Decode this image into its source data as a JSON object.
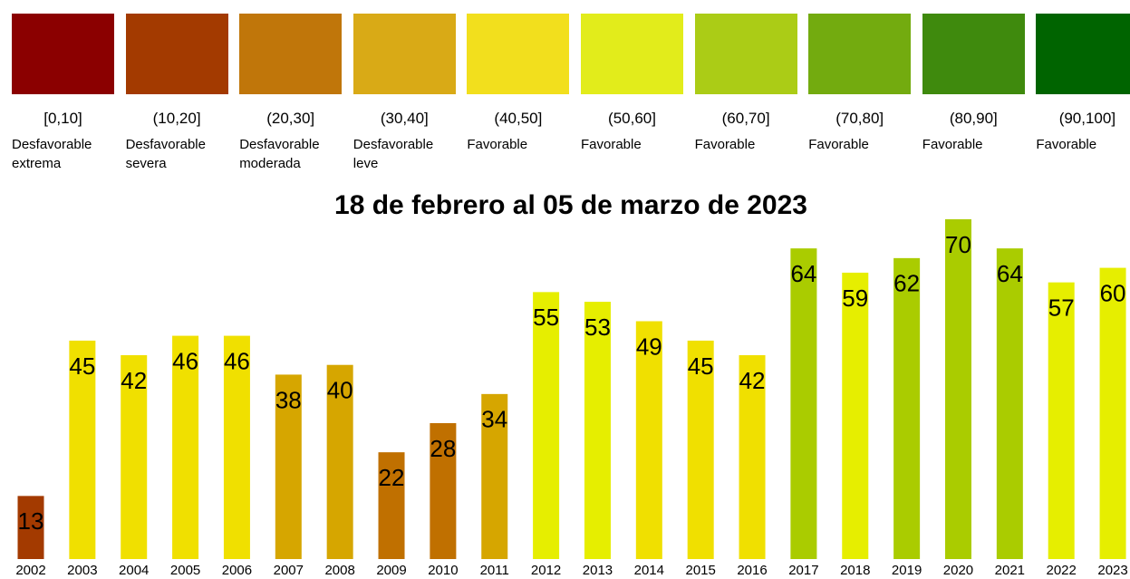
{
  "chart_data": {
    "type": "bar",
    "title": "18 de febrero al 05 de marzo de 2023",
    "legend": [
      {
        "range": "[0,10]",
        "label": "Desfavorable extrema",
        "color": "#8b0000"
      },
      {
        "range": "(10,20]",
        "label": "Desfavorable severa",
        "color": "#a33a00"
      },
      {
        "range": "(20,30]",
        "label": "Desfavorable moderada",
        "color": "#c0760a"
      },
      {
        "range": "(30,40]",
        "label": "Desfavorable leve",
        "color": "#d9aa16"
      },
      {
        "range": "(40,50]",
        "label": "Favorable",
        "color": "#f2df1d"
      },
      {
        "range": "(50,60]",
        "label": "Favorable",
        "color": "#e2ec1b"
      },
      {
        "range": "(60,70]",
        "label": "Favorable",
        "color": "#abcc16"
      },
      {
        "range": "(70,80]",
        "label": "Favorable",
        "color": "#73ab0f"
      },
      {
        "range": "(80,90]",
        "label": "Favorable",
        "color": "#3f8a0d"
      },
      {
        "range": "(90,100]",
        "label": "Favorable",
        "color": "#006400"
      }
    ],
    "categories": [
      "2002",
      "2003",
      "2004",
      "2005",
      "2006",
      "2007",
      "2008",
      "2009",
      "2010",
      "2011",
      "2012",
      "2013",
      "2014",
      "2015",
      "2016",
      "2017",
      "2018",
      "2019",
      "2020",
      "2021",
      "2022",
      "2023"
    ],
    "values": [
      13,
      45,
      42,
      46,
      46,
      38,
      40,
      22,
      28,
      34,
      55,
      53,
      49,
      45,
      42,
      64,
      59,
      62,
      70,
      64,
      57,
      60
    ],
    "colors": [
      "#a33a00",
      "#f0e000",
      "#f0e000",
      "#f0e000",
      "#f0e000",
      "#d6a600",
      "#d6a600",
      "#c07000",
      "#c07000",
      "#d6a600",
      "#e6ee00",
      "#e6ee00",
      "#f0e000",
      "#f0e000",
      "#f0e000",
      "#aacc00",
      "#e6ee00",
      "#aacc00",
      "#aacc00",
      "#aacc00",
      "#e6ee00",
      "#e6ee00"
    ],
    "ylim": [
      0,
      70
    ]
  }
}
